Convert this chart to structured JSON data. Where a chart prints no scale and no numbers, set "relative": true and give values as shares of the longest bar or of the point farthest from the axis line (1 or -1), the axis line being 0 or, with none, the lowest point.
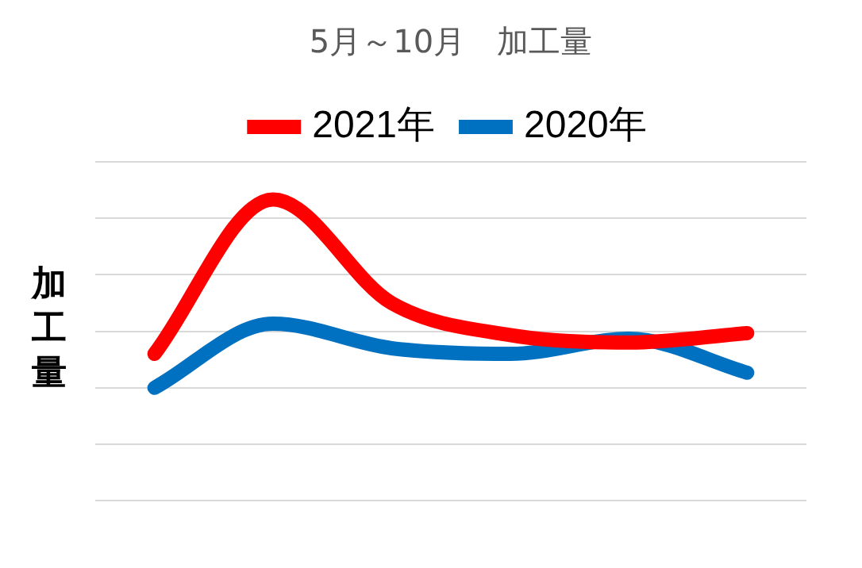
{
  "chart_data": {
    "type": "line",
    "title": "5月～10月　加工量",
    "ylabel": "加工量",
    "relative": true,
    "grid": "y",
    "legend": "top",
    "marker": "none",
    "line_style": "solid",
    "categories": [
      null,
      null,
      null,
      null,
      null,
      null
    ],
    "series": [
      {
        "name": "2021年",
        "color": "#ff0000",
        "values": [
          0.18,
          1,
          0.45,
          0.28,
          0.24,
          0.29
        ]
      },
      {
        "name": "2020年",
        "color": "#0070c0",
        "values": [
          0,
          0.34,
          0.21,
          0.18,
          0.26,
          0.08
        ]
      }
    ]
  }
}
